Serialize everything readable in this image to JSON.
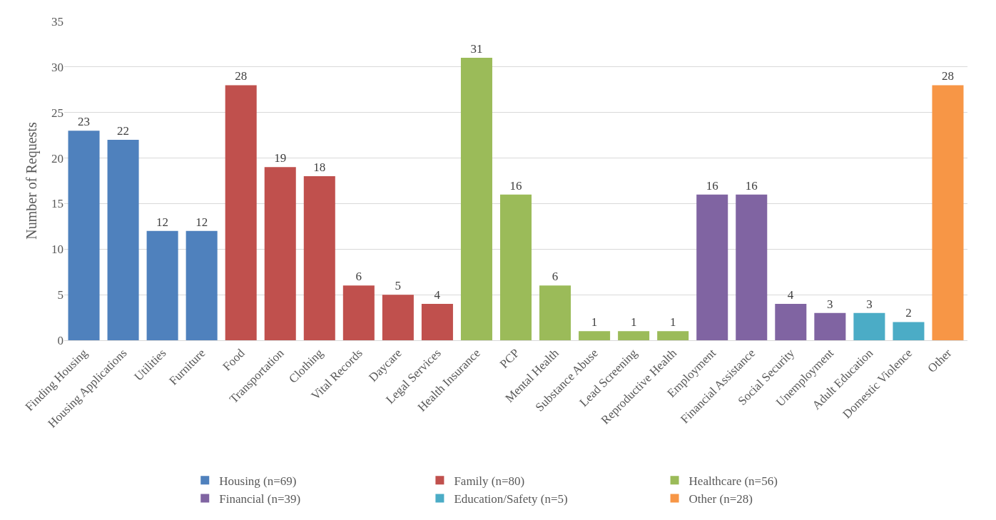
{
  "chart_data": {
    "type": "bar",
    "ylabel": "Number of Requests",
    "categories": [
      "Finding Housing",
      "Housing Applications",
      "Utilities",
      "Furniture",
      "Food",
      "Transportation",
      "Clothing",
      "Vital Records",
      "Daycare",
      "Legal Services",
      "Health Insurance",
      "PCP",
      "Mental Health",
      "Substance Abuse",
      "Lead Screening",
      "Reproductive Health",
      "Employment",
      "Financial Assistance",
      "Social Security",
      "Unemployment",
      "Adult Education",
      "Domestic Violence",
      "Other"
    ],
    "series": [
      {
        "name": "Housing (n=69)",
        "color": "#4f81bd",
        "values": [
          23,
          22,
          12,
          12,
          null,
          null,
          null,
          null,
          null,
          null,
          null,
          null,
          null,
          null,
          null,
          null,
          null,
          null,
          null,
          null,
          null,
          null,
          null
        ]
      },
      {
        "name": "Family (n=80)",
        "color": "#c0504d",
        "values": [
          null,
          null,
          null,
          null,
          28,
          19,
          18,
          6,
          5,
          4,
          null,
          null,
          null,
          null,
          null,
          null,
          null,
          null,
          null,
          null,
          null,
          null,
          null
        ]
      },
      {
        "name": "Healthcare (n=56)",
        "color": "#9bbb59",
        "values": [
          null,
          null,
          null,
          null,
          null,
          null,
          null,
          null,
          null,
          null,
          31,
          16,
          6,
          1,
          1,
          1,
          null,
          null,
          null,
          null,
          null,
          null,
          null
        ]
      },
      {
        "name": "Financial (n=39)",
        "color": "#8064a2",
        "values": [
          null,
          null,
          null,
          null,
          null,
          null,
          null,
          null,
          null,
          null,
          null,
          null,
          null,
          null,
          null,
          null,
          16,
          16,
          4,
          3,
          null,
          null,
          null
        ]
      },
      {
        "name": "Education/Safety (n=5)",
        "color": "#4bacc6",
        "values": [
          null,
          null,
          null,
          null,
          null,
          null,
          null,
          null,
          null,
          null,
          null,
          null,
          null,
          null,
          null,
          null,
          null,
          null,
          null,
          null,
          3,
          2,
          null
        ]
      },
      {
        "name": "Other (n=28)",
        "color": "#f79646",
        "values": [
          null,
          null,
          null,
          null,
          null,
          null,
          null,
          null,
          null,
          null,
          null,
          null,
          null,
          null,
          null,
          null,
          null,
          null,
          null,
          null,
          null,
          null,
          28
        ]
      }
    ],
    "ylim": [
      0,
      35
    ],
    "yticks": [
      0,
      5,
      10,
      15,
      20,
      25,
      30,
      35
    ],
    "grid": "y",
    "legend": "bottom",
    "data_labels": true
  }
}
